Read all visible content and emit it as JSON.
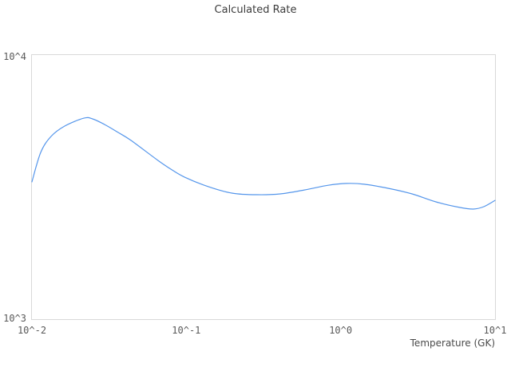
{
  "chart": {
    "title": "Calculated Rate",
    "xlabel": "Temperature (GK)",
    "x_ticks": [
      "10^-2",
      "10^-1",
      "10^0",
      "10^1"
    ],
    "y_ticks": [
      "10^4",
      "10^3"
    ],
    "colors": {
      "line": "#5596eb",
      "border": "#d9d9d9",
      "title_text": "#3b3b3b",
      "tick_text": "#595959"
    }
  },
  "chart_data": {
    "type": "line",
    "title": "Calculated Rate",
    "xlabel": "Temperature (GK)",
    "ylabel": "",
    "x_scale": "log",
    "y_scale": "log",
    "xlim": [
      0.01,
      10
    ],
    "ylim": [
      1000,
      10000
    ],
    "grid": false,
    "legend": "none",
    "series": [
      {
        "name": "Calculated Rate",
        "x": [
          0.01,
          0.0114,
          0.0133,
          0.0163,
          0.0217,
          0.0247,
          0.0296,
          0.0362,
          0.0438,
          0.0656,
          0.0794,
          0.0973,
          0.139,
          0.199,
          0.284,
          0.406,
          0.581,
          0.83,
          1.09,
          1.42,
          2.03,
          2.9,
          4.14,
          5.92,
          7.25,
          8.46,
          10.0
        ],
        "y": [
          3311,
          4280,
          4920,
          5383,
          5768,
          5733,
          5456,
          5093,
          4753,
          3990,
          3698,
          3451,
          3175,
          3000,
          2960,
          2981,
          3085,
          3214,
          3266,
          3243,
          3129,
          2981,
          2780,
          2648,
          2612,
          2667,
          2818
        ]
      }
    ]
  }
}
